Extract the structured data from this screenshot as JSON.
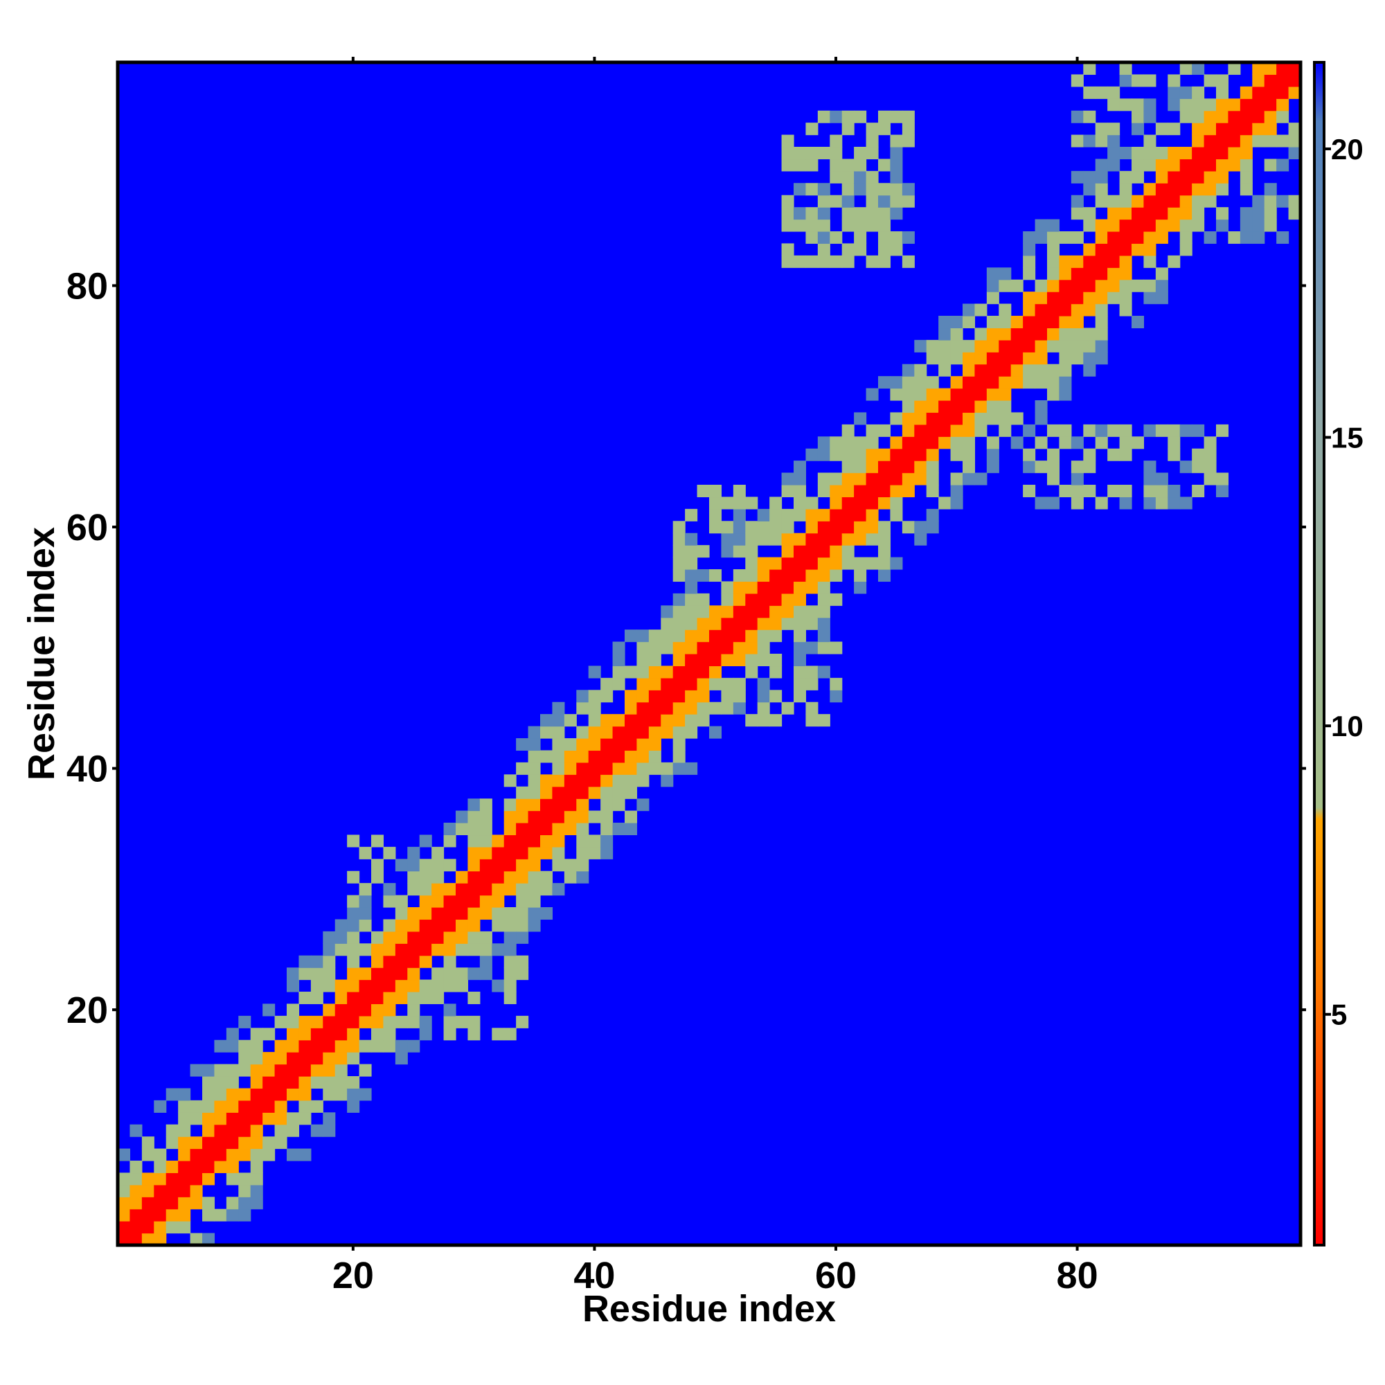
{
  "chart_data": {
    "type": "heatmap",
    "title": "",
    "xlabel": "Residue index",
    "ylabel": "Residue index",
    "n_residues": 98,
    "x_range": [
      1,
      98
    ],
    "y_range": [
      1,
      98
    ],
    "x_ticks": [
      20,
      40,
      60,
      80
    ],
    "y_ticks": [
      20,
      40,
      60,
      80
    ],
    "x_tick_labels": [
      "20",
      "40",
      "60",
      "80"
    ],
    "y_tick_labels": [
      "20",
      "40",
      "60",
      "80"
    ],
    "colorbar": {
      "range": [
        1,
        21.5
      ],
      "ticks": [
        5,
        10,
        15,
        20
      ],
      "tick_labels": [
        "5",
        "10",
        "15",
        "20"
      ],
      "cutoff_value": 21.5
    },
    "colors": {
      "contact_close": "#ff0000",
      "contact_near": "#ffa500",
      "contact_mid": "#a6bf88",
      "contact_far": "#5b86b8",
      "no_contact": "#0000ff"
    },
    "band_values": [
      {
        "offset": 0,
        "value": 1.5
      },
      {
        "offset": 1,
        "value": 3.6
      },
      {
        "offset": 2,
        "value": 5.8
      },
      {
        "offset": 3,
        "value": 7.5
      },
      {
        "offset": 4,
        "value": 9.5
      },
      {
        "offset": 5,
        "value": 11.0
      },
      {
        "offset": 6,
        "value": 12.5
      },
      {
        "offset": 7,
        "value": 14.5
      },
      {
        "offset": 8,
        "value": 17.5
      }
    ],
    "off_diagonal_regions": [
      {
        "x": [
          56,
          66
        ],
        "y": [
          82,
          94
        ],
        "value": 13
      },
      {
        "x": [
          76,
          92
        ],
        "y": [
          62,
          68
        ],
        "value": 13
      },
      {
        "x": [
          47,
          58
        ],
        "y": [
          56,
          63
        ],
        "value": 12
      },
      {
        "x": [
          52,
          60
        ],
        "y": [
          44,
          50
        ],
        "value": 12
      },
      {
        "x": [
          20,
          30
        ],
        "y": [
          26,
          34
        ],
        "value": 11.5
      },
      {
        "x": [
          28,
          34
        ],
        "y": [
          18,
          24
        ],
        "value": 12
      },
      {
        "x": [
          80,
          96
        ],
        "y": [
          88,
          98
        ],
        "value": 13
      },
      {
        "x": [
          90,
          98
        ],
        "y": [
          84,
          92
        ],
        "value": 15
      }
    ]
  }
}
